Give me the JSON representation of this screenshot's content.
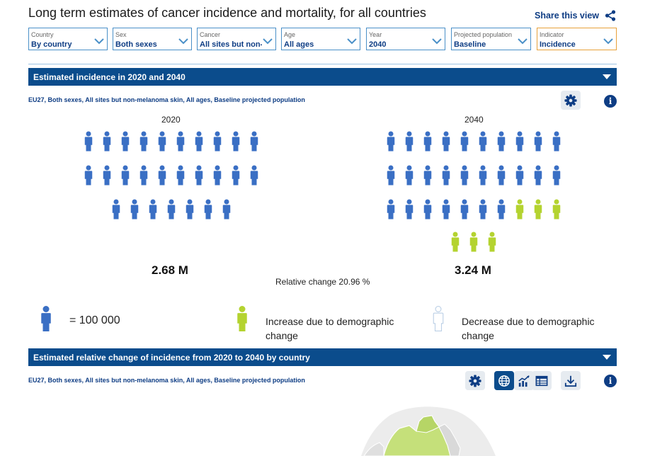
{
  "header": {
    "title": "Long term estimates of cancer incidence and mortality, for all countries",
    "share_label": "Share this view"
  },
  "filters": [
    {
      "label": "Country",
      "value": "By country"
    },
    {
      "label": "Sex",
      "value": "Both sexes"
    },
    {
      "label": "Cancer",
      "value": "All sites but non-melanoma skin"
    },
    {
      "label": "Age",
      "value": "All ages"
    },
    {
      "label": "Year",
      "value": "2040"
    },
    {
      "label": "Projected population",
      "value": "Baseline"
    },
    {
      "label": "Indicator",
      "value": "Incidence"
    }
  ],
  "incidence": {
    "title": "Estimated incidence in 2020 and 2040",
    "subtitle": "EU27, Both sexes, All sites but non-melanoma skin, All ages, Baseline projected population",
    "left": {
      "year": "2020",
      "value": "2.68 M",
      "blue_count": 27,
      "green_count": 0
    },
    "right": {
      "year": "2040",
      "value": "3.24 M",
      "blue_count": 27,
      "green_count": 6
    },
    "relative_change": "Relative change 20.96 %"
  },
  "legend": {
    "unit": "= 100 000",
    "increase": "Increase due to demographic change",
    "decrease": "Decrease due to demographic change"
  },
  "relative_change_section": {
    "title": "Estimated relative change of incidence from 2020 to 2040 by country",
    "subtitle": "EU27, Both sexes, All sites but non-melanoma skin, All ages, Baseline projected population"
  },
  "colors": {
    "brand_blue": "#0b4c8c",
    "person_blue": "#3a6fc4",
    "person_green": "#b4d330",
    "map_green": "#c5e07a"
  },
  "icons": [
    "share-icon",
    "chevron-down-icon",
    "gear-icon",
    "info-icon",
    "globe-icon",
    "trend-chart-icon",
    "table-icon",
    "download-icon",
    "person-icon"
  ]
}
